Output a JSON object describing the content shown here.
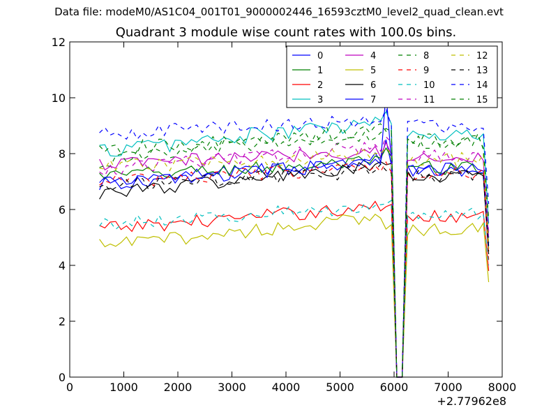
{
  "header": {
    "suptitle": "Data file: modeM0/AS1C04_001T01_9000002446_16593cztM0_level2_quad_clean.evt"
  },
  "chart_data": {
    "type": "line",
    "title": "Quadrant 3 module wise count rates with 100.0s bins.",
    "xlabel": "",
    "ylabel": "",
    "x_offset_label": "+2.77962e8",
    "xlim": [
      0,
      8000
    ],
    "ylim": [
      0,
      12
    ],
    "xticks": [
      0,
      1000,
      2000,
      3000,
      4000,
      5000,
      6000,
      7000,
      8000
    ],
    "yticks": [
      0,
      2,
      4,
      6,
      8,
      10,
      12
    ],
    "grid": false,
    "legend_position": "top-right",
    "legend_columns": 4,
    "bin_start": 550,
    "bin_width": 100,
    "gap_bins": [
      55,
      56
    ],
    "series": [
      {
        "name": "0",
        "color": "#0000ff",
        "style": "solid",
        "base": 6.9,
        "trend": 0.9,
        "amp": 0.25,
        "end": 4.6,
        "peak": 8.5
      },
      {
        "name": "1",
        "color": "#008000",
        "style": "solid",
        "base": 7.2,
        "trend": 0.5,
        "amp": 0.25,
        "end": 4.8,
        "peak": 8.2
      },
      {
        "name": "2",
        "color": "#ff0000",
        "style": "solid",
        "base": 5.3,
        "trend": 0.8,
        "amp": 0.25,
        "end": 3.8,
        "peak": 6.1
      },
      {
        "name": "3",
        "color": "#00bfbf",
        "style": "solid",
        "base": 8.1,
        "trend": 1.0,
        "amp": 0.3,
        "end": 5.5,
        "peak": 9.5
      },
      {
        "name": "4",
        "color": "#bf00bf",
        "style": "solid",
        "base": 7.6,
        "trend": 0.5,
        "amp": 0.25,
        "end": 5.0,
        "peak": 8.4
      },
      {
        "name": "5",
        "color": "#bfbf00",
        "style": "solid",
        "base": 4.7,
        "trend": 1.0,
        "amp": 0.25,
        "end": 3.4,
        "peak": 5.3
      },
      {
        "name": "6",
        "color": "#000000",
        "style": "solid",
        "base": 6.6,
        "trend": 0.9,
        "amp": 0.25,
        "end": 4.4,
        "peak": 7.6
      },
      {
        "name": "7",
        "color": "#0000ff",
        "style": "solid",
        "base": 6.9,
        "trend": 0.8,
        "amp": 0.25,
        "end": 4.7,
        "peak": 10.2
      },
      {
        "name": "8",
        "color": "#008000",
        "style": "dashed",
        "base": 7.7,
        "trend": 1.2,
        "amp": 0.3,
        "end": 5.0,
        "peak": 8.8
      },
      {
        "name": "9",
        "color": "#ff0000",
        "style": "dashed",
        "base": 7.0,
        "trend": 0.5,
        "amp": 0.25,
        "end": 4.2,
        "peak": 7.7
      },
      {
        "name": "10",
        "color": "#00bfbf",
        "style": "dashed",
        "base": 5.5,
        "trend": 0.6,
        "amp": 0.25,
        "end": 4.0,
        "peak": 6.2
      },
      {
        "name": "11",
        "color": "#bf00bf",
        "style": "dashed",
        "base": 7.4,
        "trend": 0.9,
        "amp": 0.25,
        "end": 5.2,
        "peak": 8.6
      },
      {
        "name": "12",
        "color": "#bfbf00",
        "style": "dashed",
        "base": 7.5,
        "trend": 0.5,
        "amp": 0.25,
        "end": 4.6,
        "peak": 8.2
      },
      {
        "name": "13",
        "color": "#000000",
        "style": "dashed",
        "base": 6.8,
        "trend": 0.6,
        "amp": 0.25,
        "end": 4.5,
        "peak": 7.4
      },
      {
        "name": "14",
        "color": "#0000ff",
        "style": "dashed",
        "base": 8.7,
        "trend": 0.5,
        "amp": 0.25,
        "end": 6.2,
        "peak": 9.6
      },
      {
        "name": "15",
        "color": "#008000",
        "style": "dashed",
        "base": 8.2,
        "trend": 0.4,
        "amp": 0.25,
        "end": 5.7,
        "peak": 8.9
      }
    ]
  }
}
